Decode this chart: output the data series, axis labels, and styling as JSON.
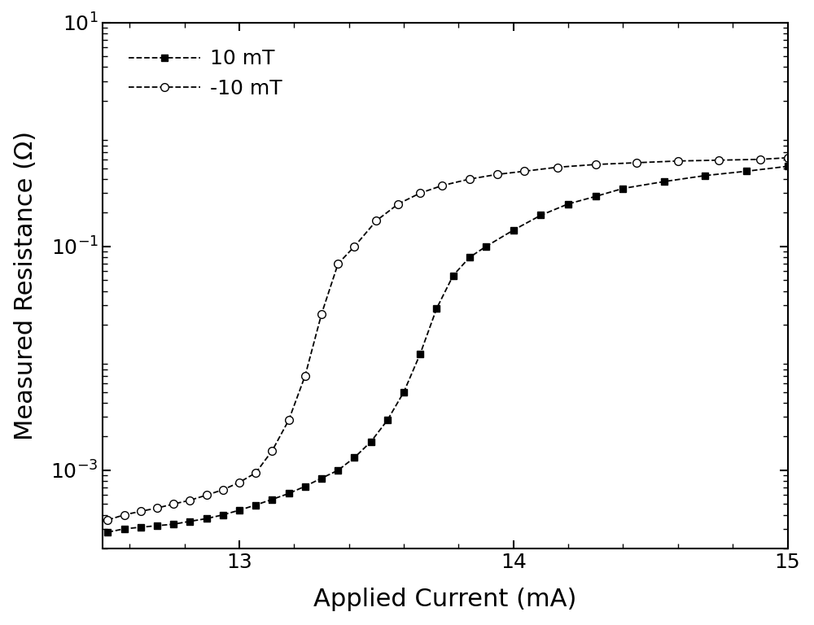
{
  "title": "",
  "xlabel": "Applied Current (mA)",
  "ylabel": "Measured Resistance (Ω)",
  "xlim": [
    12.5,
    15.0
  ],
  "ylim": [
    0.0002,
    10.0
  ],
  "x_ticks": [
    13,
    14,
    15
  ],
  "y_ticks": [
    0.001,
    0.1,
    10.0
  ],
  "series_10mT": {
    "label": "10 mT",
    "color": "#000000",
    "linestyle": "--",
    "marker": "s",
    "markersize": 6,
    "markerfacecolor": "#000000",
    "x": [
      12.52,
      12.58,
      12.64,
      12.7,
      12.76,
      12.82,
      12.88,
      12.94,
      13.0,
      13.06,
      13.12,
      13.18,
      13.24,
      13.3,
      13.36,
      13.42,
      13.48,
      13.54,
      13.6,
      13.66,
      13.72,
      13.78,
      13.84,
      13.9,
      14.0,
      14.1,
      14.2,
      14.3,
      14.4,
      14.55,
      14.7,
      14.85,
      15.0
    ],
    "y": [
      0.00028,
      0.0003,
      0.00031,
      0.00032,
      0.00033,
      0.00035,
      0.00037,
      0.0004,
      0.00044,
      0.00049,
      0.00055,
      0.00062,
      0.00072,
      0.00085,
      0.001,
      0.0013,
      0.0018,
      0.0028,
      0.005,
      0.011,
      0.028,
      0.055,
      0.08,
      0.1,
      0.14,
      0.19,
      0.24,
      0.28,
      0.33,
      0.38,
      0.43,
      0.47,
      0.52
    ]
  },
  "series_neg10mT": {
    "label": "-10 mT",
    "color": "#000000",
    "linestyle": "--",
    "marker": "o",
    "markersize": 7,
    "markerfacecolor": "#ffffff",
    "x": [
      12.52,
      12.58,
      12.64,
      12.7,
      12.76,
      12.82,
      12.88,
      12.94,
      13.0,
      13.06,
      13.12,
      13.18,
      13.24,
      13.3,
      13.36,
      13.42,
      13.5,
      13.58,
      13.66,
      13.74,
      13.84,
      13.94,
      14.04,
      14.16,
      14.3,
      14.45,
      14.6,
      14.75,
      14.9,
      15.0
    ],
    "y": [
      0.00036,
      0.0004,
      0.00043,
      0.00046,
      0.0005,
      0.00054,
      0.0006,
      0.00067,
      0.00078,
      0.00095,
      0.0015,
      0.0028,
      0.007,
      0.025,
      0.07,
      0.1,
      0.17,
      0.24,
      0.3,
      0.35,
      0.4,
      0.44,
      0.47,
      0.51,
      0.54,
      0.56,
      0.58,
      0.59,
      0.6,
      0.62
    ]
  },
  "background_color": "#ffffff",
  "axes_color": "#000000",
  "tick_fontsize": 18,
  "label_fontsize": 22,
  "legend_fontsize": 18
}
